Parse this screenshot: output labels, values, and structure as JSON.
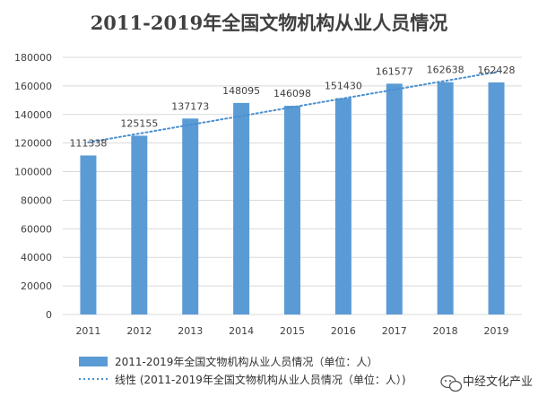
{
  "chart_data": {
    "type": "bar",
    "title": "2011-2019年全国文物机构从业人员情况",
    "categories": [
      "2011",
      "2012",
      "2013",
      "2014",
      "2015",
      "2016",
      "2017",
      "2018",
      "2019"
    ],
    "series": [
      {
        "name": "2011-2019年全国文物机构从业人员情况（单位：人）",
        "values": [
          111338,
          125155,
          137173,
          148095,
          146098,
          151430,
          161577,
          162638,
          162428
        ],
        "color": "#5b9bd5"
      }
    ],
    "trendline": {
      "name": "线性 (2011-2019年全国文物机构从业人员情况（单位：人）)",
      "type": "linear",
      "color": "#4a8fd0"
    },
    "ylim": [
      0,
      180000
    ],
    "yticks": [
      0,
      20000,
      40000,
      60000,
      80000,
      100000,
      120000,
      140000,
      160000,
      180000
    ],
    "grid": true,
    "legend_position": "bottom-left",
    "xlabel": "",
    "ylabel": ""
  },
  "watermark": {
    "text": "中经文化产业",
    "icon": "wechat-bubble-icon"
  }
}
